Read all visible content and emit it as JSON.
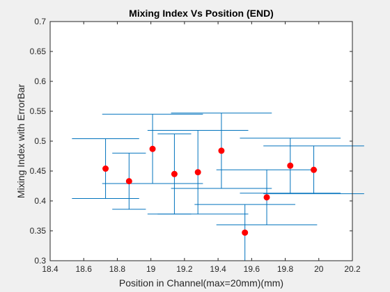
{
  "chart_data": {
    "type": "scatter",
    "title": "Mixing Index Vs Position (END)",
    "xlabel": "Position in Channel(max=20mm)(mm)",
    "ylabel": "Mixing Index with ErrorBar",
    "xlim": [
      18.4,
      20.2
    ],
    "ylim": [
      0.3,
      0.7
    ],
    "xticks": [
      18.4,
      18.6,
      18.8,
      19,
      19.2,
      19.4,
      19.6,
      19.8,
      20,
      20.2
    ],
    "xtick_labels": [
      "18.4",
      "18.6",
      "18.8",
      "19",
      "19.2",
      "19.4",
      "19.6",
      "19.8",
      "20",
      "20.2"
    ],
    "yticks": [
      0.3,
      0.35,
      0.4,
      0.45,
      0.5,
      0.55,
      0.6,
      0.65,
      0.7
    ],
    "ytick_labels": [
      "0.3",
      "0.35",
      "0.4",
      "0.45",
      "0.5",
      "0.55",
      "0.6",
      "0.65",
      "0.7"
    ],
    "grid": false,
    "legend": "none",
    "marker_color": "#ff0000",
    "errorbar_color": "#0072bd",
    "points": [
      {
        "x": 18.73,
        "y": 0.454,
        "err": 0.05,
        "cap_halfwidth": 0.2
      },
      {
        "x": 18.87,
        "y": 0.433,
        "err": 0.047,
        "cap_halfwidth": 0.1
      },
      {
        "x": 19.01,
        "y": 0.487,
        "err": 0.058,
        "cap_halfwidth": 0.3
      },
      {
        "x": 19.14,
        "y": 0.445,
        "err": 0.067,
        "cap_halfwidth": 0.1
      },
      {
        "x": 19.28,
        "y": 0.448,
        "err": 0.07,
        "cap_halfwidth": 0.3
      },
      {
        "x": 19.42,
        "y": 0.484,
        "err": 0.063,
        "cap_halfwidth": 0.3
      },
      {
        "x": 19.56,
        "y": 0.347,
        "err": 0.047,
        "cap_halfwidth": 0.3
      },
      {
        "x": 19.69,
        "y": 0.406,
        "err": 0.046,
        "cap_halfwidth": 0.3
      },
      {
        "x": 19.83,
        "y": 0.459,
        "err": 0.046,
        "cap_halfwidth": 0.3
      },
      {
        "x": 19.97,
        "y": 0.452,
        "err": 0.04,
        "cap_halfwidth": 0.3
      }
    ]
  }
}
